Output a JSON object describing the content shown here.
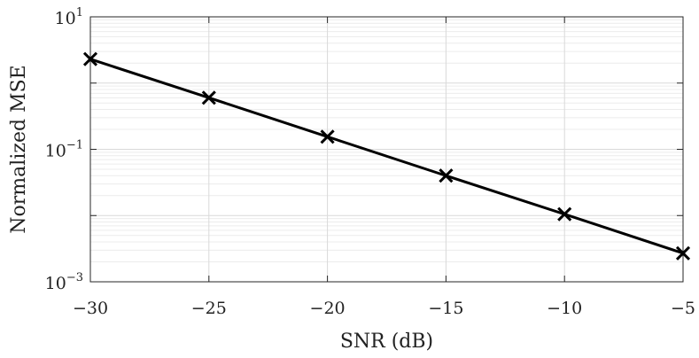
{
  "chart_data": {
    "type": "line",
    "xlabel": "SNR (dB)",
    "ylabel": "Normalized MSE",
    "x": [
      -30,
      -25,
      -20,
      -15,
      -10,
      -5
    ],
    "xlim": [
      -30,
      -5
    ],
    "ylim": [
      0.001,
      10
    ],
    "yscale": "log",
    "grid": true,
    "x_ticks": [
      -30,
      -25,
      -20,
      -15,
      -10,
      -5
    ],
    "x_tick_labels": [
      "−30",
      "−25",
      "−20",
      "−15",
      "−10",
      "−5"
    ],
    "y_ticks": [
      0.001,
      0.1,
      10
    ],
    "y_tick_labels": [
      {
        "base": "10",
        "exp": "−3"
      },
      {
        "base": "10",
        "exp": "−1"
      },
      {
        "base": "10",
        "exp": "1"
      }
    ],
    "series": [
      {
        "values": [
          2.3,
          0.6,
          0.155,
          0.04,
          0.0105,
          0.0027
        ],
        "color": "#000000",
        "marker": "x"
      }
    ]
  }
}
